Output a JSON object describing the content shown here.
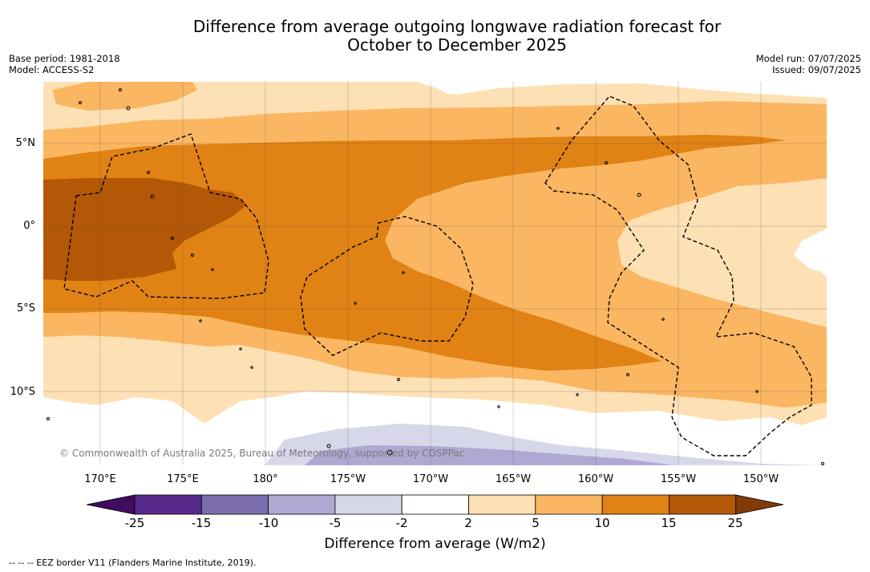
{
  "title_line1": "Difference from average outgoing longwave radiation forecast for",
  "title_line2": "October to December 2025",
  "base_period": "Base period: 1981-2018",
  "model": "Model: ACCESS-S2",
  "model_run": "Model run: 07/07/2025",
  "issued": "Issued: 09/07/2025",
  "lat_labels": [
    "5°N",
    "0°",
    "5°S",
    "10°S"
  ],
  "lon_labels": [
    "170°E",
    "175°E",
    "180°",
    "175°W",
    "170°W",
    "165°W",
    "160°W",
    "155°W",
    "150°W"
  ],
  "colorbar": {
    "ticks": [
      "-25",
      "-15",
      "-10",
      "-5",
      "-2",
      "2",
      "5",
      "10",
      "15",
      "25"
    ],
    "colors": [
      "#3f0c60",
      "#562a8a",
      "#7c6dae",
      "#aea8d2",
      "#d7d7ea",
      "#ffffff",
      "#fde0b4",
      "#fbb661",
      "#e08214",
      "#b35806",
      "#7f3b08"
    ],
    "label": "Difference from average (W/m2)"
  },
  "copyright": "© Commonwealth of Australia 2025, Bureau of Meteorology, supported by COSPPac",
  "footer": "--  --  -- EEZ border V11 (Flanders Marine Institute, 2019)."
}
